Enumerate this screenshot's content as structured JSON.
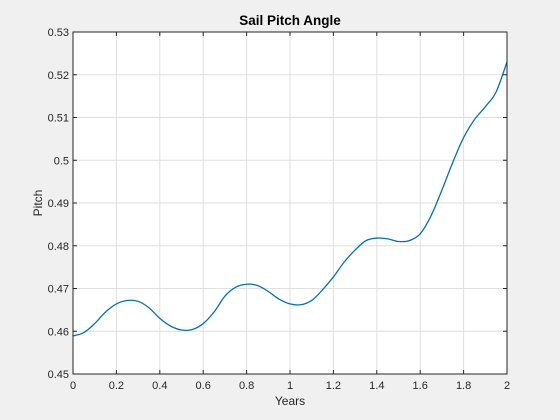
{
  "chart_data": {
    "type": "line",
    "title": "Sail Pitch Angle",
    "xlabel": "Years",
    "ylabel": "Pitch",
    "xlim": [
      0,
      2
    ],
    "ylim": [
      0.45,
      0.53
    ],
    "xticks": [
      0,
      0.2,
      0.4,
      0.6,
      0.8,
      1,
      1.2,
      1.4,
      1.6,
      1.8,
      2
    ],
    "xtick_labels": [
      "0",
      "0.2",
      "0.4",
      "0.6",
      "0.8",
      "1",
      "1.2",
      "1.4",
      "1.6",
      "1.8",
      "2"
    ],
    "yticks": [
      0.45,
      0.46,
      0.47,
      0.48,
      0.49,
      0.5,
      0.51,
      0.52,
      0.53
    ],
    "ytick_labels": [
      "0.45",
      "0.46",
      "0.47",
      "0.48",
      "0.49",
      "0.5",
      "0.51",
      "0.52",
      "0.53"
    ],
    "grid": true,
    "line_color": "#0072bd",
    "background_color": "#f0f0f0",
    "axes_background_color": "#ffffff",
    "series": [
      {
        "x": [
          0,
          0.05,
          0.1,
          0.15,
          0.2,
          0.25,
          0.3,
          0.35,
          0.4,
          0.45,
          0.5,
          0.55,
          0.6,
          0.65,
          0.7,
          0.75,
          0.8,
          0.85,
          0.9,
          0.95,
          1.0,
          1.05,
          1.1,
          1.15,
          1.2,
          1.25,
          1.3,
          1.35,
          1.4,
          1.45,
          1.5,
          1.55,
          1.6,
          1.65,
          1.7,
          1.75,
          1.8,
          1.85,
          1.9,
          1.95,
          2.0
        ],
        "values": [
          0.4589,
          0.4597,
          0.4618,
          0.4645,
          0.4664,
          0.4672,
          0.467,
          0.4655,
          0.463,
          0.4612,
          0.4603,
          0.4604,
          0.4618,
          0.4645,
          0.4682,
          0.4703,
          0.471,
          0.4707,
          0.4693,
          0.4675,
          0.4664,
          0.4662,
          0.4672,
          0.4697,
          0.4727,
          0.4762,
          0.479,
          0.4812,
          0.4818,
          0.4816,
          0.481,
          0.4812,
          0.4828,
          0.487,
          0.493,
          0.4995,
          0.5053,
          0.5095,
          0.5125,
          0.516,
          0.523
        ]
      }
    ]
  }
}
